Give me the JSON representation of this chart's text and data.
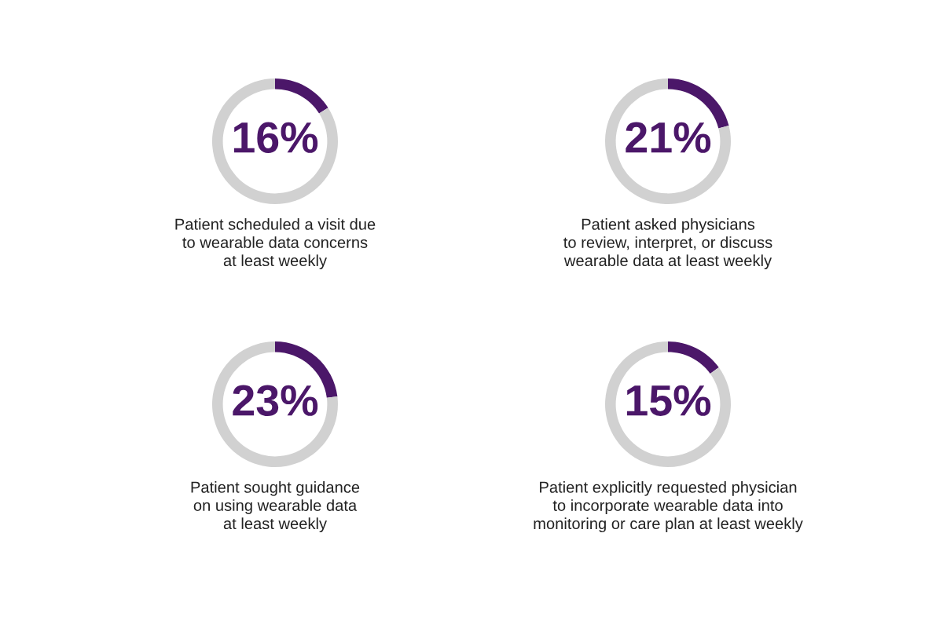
{
  "chart_data": [
    {
      "type": "donut",
      "title": "Patient scheduled a visit due\nto wearable data concerns\nat least weekly",
      "categories": [
        null,
        null
      ],
      "values": [
        16,
        84
      ],
      "colors": [
        "#4b1769",
        "#d1d1d1"
      ],
      "value_labels": [
        "16%",
        null
      ]
    },
    {
      "type": "donut",
      "title": "Patient asked physicians\nto review, interpret, or discuss\nwearable data at least weekly",
      "categories": [
        null,
        null
      ],
      "values": [
        21,
        79
      ],
      "colors": [
        "#4b1769",
        "#d1d1d1"
      ],
      "value_labels": [
        "21%",
        null
      ]
    },
    {
      "type": "donut",
      "title": "Patient sought guidance\non using wearable data\nat least weekly",
      "categories": [
        null,
        null
      ],
      "values": [
        23,
        77
      ],
      "colors": [
        "#4b1769",
        "#d1d1d1"
      ],
      "value_labels": [
        "23%",
        null
      ]
    },
    {
      "type": "donut",
      "title": "Patient explicitly requested physician\nto incorporate wearable data into\nmonitoring or care plan at least weekly",
      "categories": [
        null,
        null
      ],
      "values": [
        15,
        85
      ],
      "colors": [
        "#4b1769",
        "#d1d1d1"
      ],
      "value_labels": [
        "15%",
        null
      ]
    }
  ]
}
